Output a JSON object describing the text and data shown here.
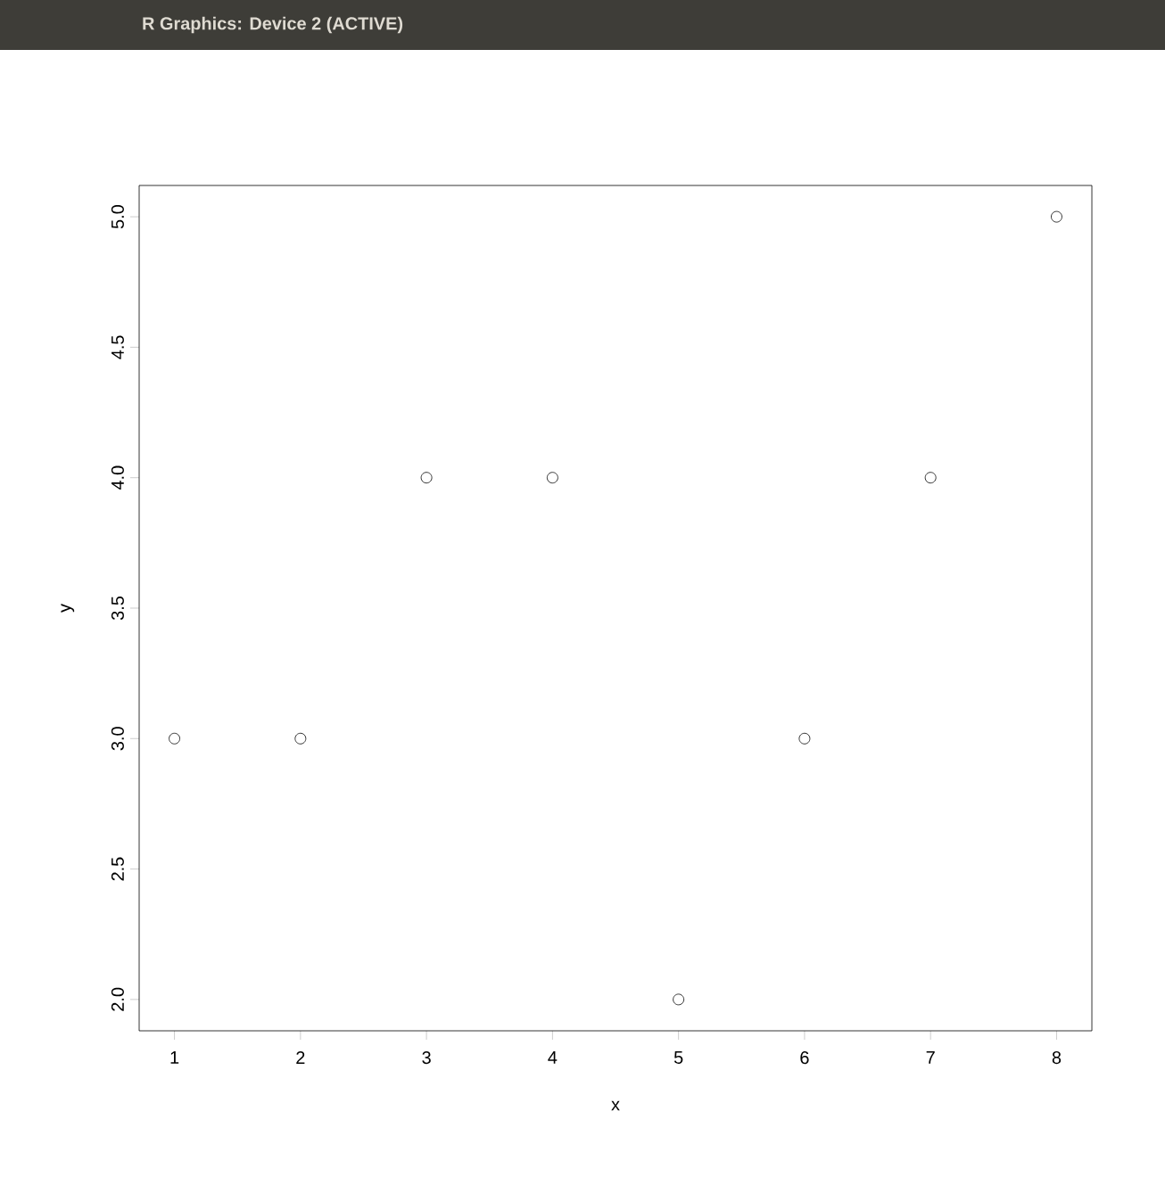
{
  "chart_data": {
    "type": "scatter",
    "title": "R Graphics: Device 2 (ACTIVE)",
    "xlabel": "x",
    "ylabel": "y",
    "x": [
      1,
      2,
      3,
      4,
      5,
      6,
      7,
      8
    ],
    "values": [
      3,
      3,
      4,
      4,
      2,
      3,
      4,
      5
    ],
    "color": "#000000",
    "marker": "circle",
    "xlim": [
      0.72,
      8.28
    ],
    "ylim": [
      1.88,
      5.12
    ],
    "xticks": [
      1,
      2,
      3,
      4,
      5,
      6,
      7,
      8
    ],
    "yticks": [
      {
        "value": 2,
        "label": "2.0"
      },
      {
        "value": 2.5,
        "label": "2.5"
      },
      {
        "value": 3,
        "label": "3.0"
      },
      {
        "value": 3.5,
        "label": "3.5"
      },
      {
        "value": 4,
        "label": "4.0"
      },
      {
        "value": 4.5,
        "label": "4.5"
      },
      {
        "value": 5,
        "label": "5.0"
      }
    ],
    "grid": false
  }
}
